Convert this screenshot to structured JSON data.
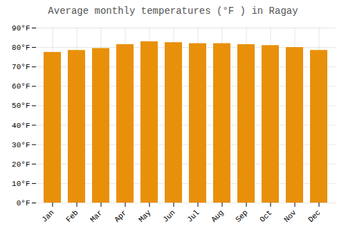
{
  "chart_data": {
    "type": "bar",
    "title": "Average monthly temperatures (°F ) in Ragay",
    "categories": [
      "Jan",
      "Feb",
      "Mar",
      "Apr",
      "May",
      "Jun",
      "Jul",
      "Aug",
      "Sep",
      "Oct",
      "Nov",
      "Dec"
    ],
    "values": [
      77.5,
      78.5,
      79.5,
      81.5,
      83.0,
      82.5,
      82.0,
      82.0,
      81.5,
      81.0,
      80.0,
      78.5
    ],
    "color": "#E8900A",
    "ylim": [
      0,
      90
    ],
    "yticks": [
      {
        "value": 0,
        "label": "0°F"
      },
      {
        "value": 10,
        "label": "10°F"
      },
      {
        "value": 20,
        "label": "20°F"
      },
      {
        "value": 30,
        "label": "30°F"
      },
      {
        "value": 40,
        "label": "40°F"
      },
      {
        "value": 50,
        "label": "50°F"
      },
      {
        "value": 60,
        "label": "60°F"
      },
      {
        "value": 70,
        "label": "70°F"
      },
      {
        "value": 80,
        "label": "80°F"
      },
      {
        "value": 90,
        "label": "90°F"
      }
    ],
    "grid": true
  }
}
